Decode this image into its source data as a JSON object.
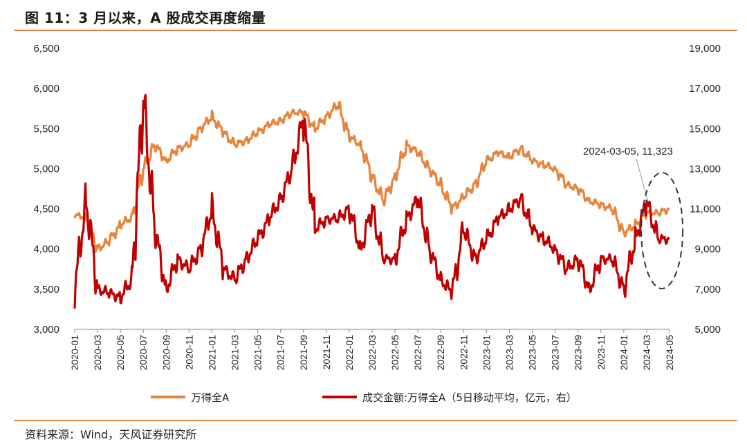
{
  "header": {
    "title": "图 11：3 月以来，A 股成交再度缩量"
  },
  "footer": {
    "source": "资料来源：Wind，天风证券研究所"
  },
  "colors": {
    "accent": "#e8823a",
    "series_index": "#e8843c",
    "series_turnover": "#c00000"
  },
  "chart_data": {
    "type": "line",
    "title": "",
    "x_ticks": [
      "2020-01",
      "2020-03",
      "2020-05",
      "2020-07",
      "2020-09",
      "2020-11",
      "2021-01",
      "2021-03",
      "2021-05",
      "2021-07",
      "2021-09",
      "2021-11",
      "2022-01",
      "2022-03",
      "2022-05",
      "2022-07",
      "2022-09",
      "2022-11",
      "2023-01",
      "2023-03",
      "2023-05",
      "2023-07",
      "2023-09",
      "2023-11",
      "2024-01",
      "2024-03",
      "2024-05"
    ],
    "y_left": {
      "min": 3000,
      "max": 6500,
      "ticks": [
        "3,000",
        "3,500",
        "4,000",
        "4,500",
        "5,000",
        "5,500",
        "6,000",
        "6,500"
      ]
    },
    "y_right": {
      "min": 5000,
      "max": 19000,
      "ticks": [
        "5,000",
        "7,000",
        "9,000",
        "11,000",
        "13,000",
        "15,000",
        "17,000",
        "19,000"
      ]
    },
    "annotation": {
      "text": "2024-03-05, 11,323",
      "x": "2024-03-05",
      "y": 11323
    },
    "series": [
      {
        "name": "万得全A",
        "axis": "left",
        "x": [
          "2020-01",
          "2020-02",
          "2020-03",
          "2020-04",
          "2020-05",
          "2020-06",
          "2020-07",
          "2020-08",
          "2020-09",
          "2020-10",
          "2020-11",
          "2020-12",
          "2021-01",
          "2021-02",
          "2021-03",
          "2021-04",
          "2021-05",
          "2021-06",
          "2021-07",
          "2021-08",
          "2021-09",
          "2021-10",
          "2021-11",
          "2021-12",
          "2022-01",
          "2022-02",
          "2022-03",
          "2022-04",
          "2022-05",
          "2022-06",
          "2022-07",
          "2022-08",
          "2022-09",
          "2022-10",
          "2022-11",
          "2022-12",
          "2023-01",
          "2023-02",
          "2023-03",
          "2023-04",
          "2023-05",
          "2023-06",
          "2023-07",
          "2023-08",
          "2023-09",
          "2023-10",
          "2023-11",
          "2023-12",
          "2024-01",
          "2024-02",
          "2024-03",
          "2024-04",
          "2024-05"
        ],
        "values": [
          4420,
          4400,
          4000,
          4100,
          4300,
          4400,
          5000,
          5300,
          5100,
          5250,
          5300,
          5500,
          5650,
          5450,
          5300,
          5350,
          5450,
          5550,
          5600,
          5700,
          5700,
          5500,
          5650,
          5800,
          5400,
          5300,
          4900,
          4600,
          4900,
          5300,
          5200,
          5000,
          4800,
          4500,
          4650,
          4800,
          5100,
          5200,
          5150,
          5250,
          5100,
          5050,
          5000,
          4800,
          4750,
          4600,
          4550,
          4500,
          4200,
          4300,
          4450,
          4450,
          4500
        ]
      },
      {
        "name": "成交金额:万得全A（5日移动平均，亿元，右）",
        "axis": "right",
        "x": [
          "2020-01",
          "2020-02",
          "2020-03",
          "2020-04",
          "2020-05",
          "2020-06",
          "2020-07",
          "2020-08",
          "2020-09",
          "2020-10",
          "2020-11",
          "2020-12",
          "2021-01",
          "2021-02",
          "2021-03",
          "2021-04",
          "2021-05",
          "2021-06",
          "2021-07",
          "2021-08",
          "2021-09",
          "2021-10",
          "2021-11",
          "2021-12",
          "2022-01",
          "2022-02",
          "2022-03",
          "2022-04",
          "2022-05",
          "2022-06",
          "2022-07",
          "2022-08",
          "2022-09",
          "2022-10",
          "2022-11",
          "2022-12",
          "2023-01",
          "2023-02",
          "2023-03",
          "2023-04",
          "2023-05",
          "2023-06",
          "2023-07",
          "2023-08",
          "2023-09",
          "2023-10",
          "2023-11",
          "2023-12",
          "2024-01",
          "2024-02",
          "2024-03",
          "2024-04",
          "2024-05"
        ],
        "values": [
          7000,
          11500,
          7000,
          6800,
          6600,
          7500,
          16500,
          10000,
          7000,
          8500,
          8000,
          9000,
          11000,
          8000,
          7500,
          8500,
          9500,
          10500,
          11500,
          13000,
          15500,
          10000,
          10500,
          10500,
          11000,
          9000,
          11000,
          8500,
          8500,
          10500,
          11500,
          9000,
          7500,
          6800,
          10000,
          8500,
          9500,
          10500,
          11000,
          11500,
          10000,
          9500,
          9000,
          8000,
          8500,
          7000,
          8500,
          8500,
          7000,
          9500,
          11323,
          9500,
          9500
        ]
      }
    ]
  },
  "legend": {
    "item1": "万得全A",
    "item2": "成交金额:万得全A（5日移动平均，亿元，右）"
  }
}
